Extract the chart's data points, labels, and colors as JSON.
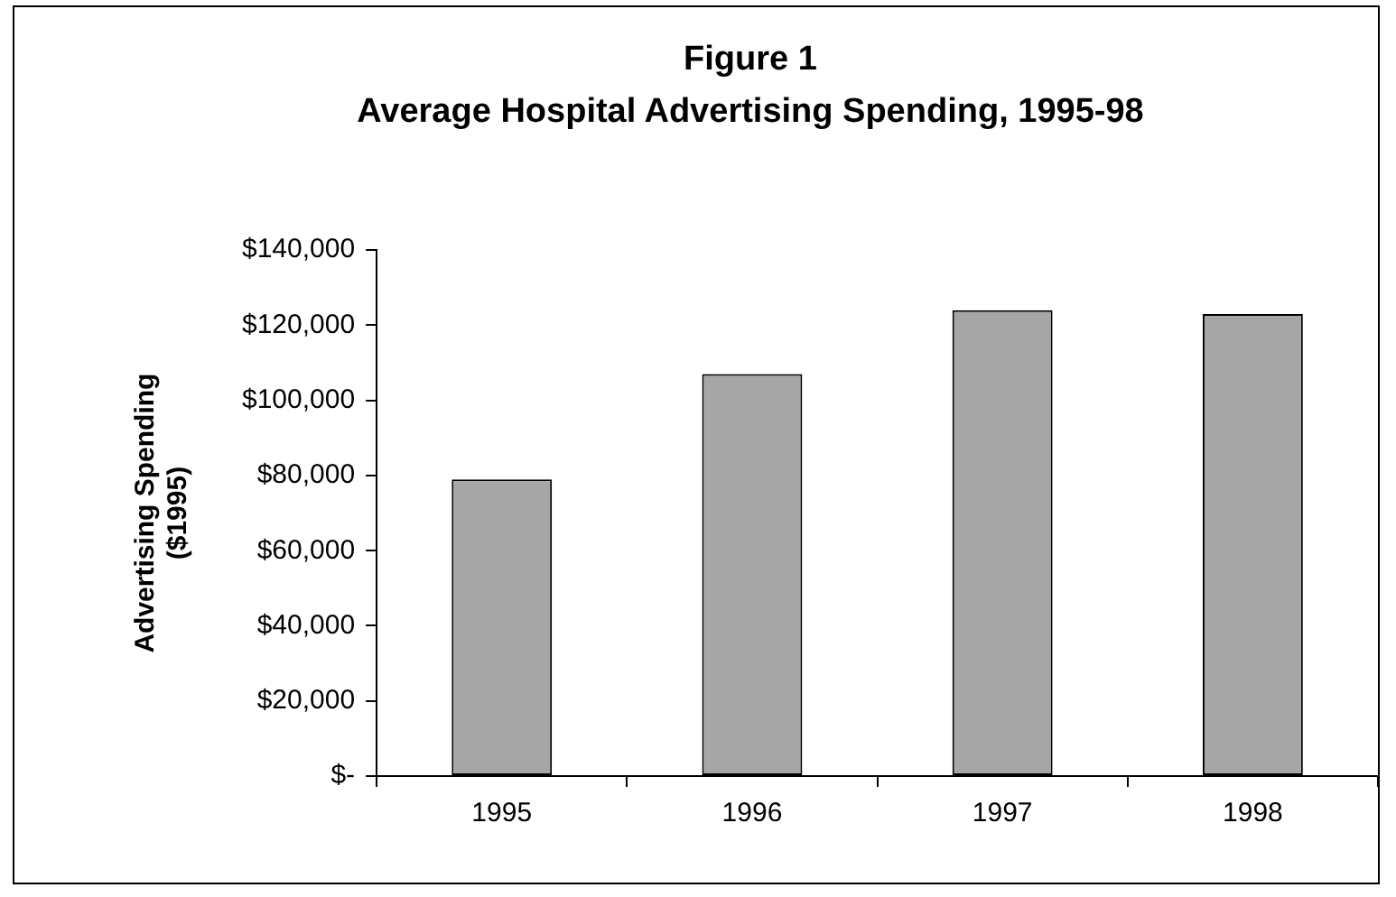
{
  "chart_data": {
    "type": "bar",
    "title": "Figure 1",
    "subtitle": "Average Hospital Advertising Spending, 1995-98",
    "ylabel": "Advertising Spending\n($1995)",
    "categories": [
      "1995",
      "1996",
      "1997",
      "1998"
    ],
    "values": [
      79000,
      107000,
      124000,
      123000
    ],
    "color": "#a6a6a6",
    "ylim": [
      0,
      140000
    ],
    "yticks": [
      {
        "value": 0,
        "label": "$-"
      },
      {
        "value": 20000,
        "label": "$20,000"
      },
      {
        "value": 40000,
        "label": "$40,000"
      },
      {
        "value": 60000,
        "label": "$60,000"
      },
      {
        "value": 80000,
        "label": "$80,000"
      },
      {
        "value": 100000,
        "label": "$100,000"
      },
      {
        "value": 120000,
        "label": "$120,000"
      },
      {
        "value": 140000,
        "label": "$140,000"
      }
    ],
    "grid": false,
    "legend": false
  }
}
